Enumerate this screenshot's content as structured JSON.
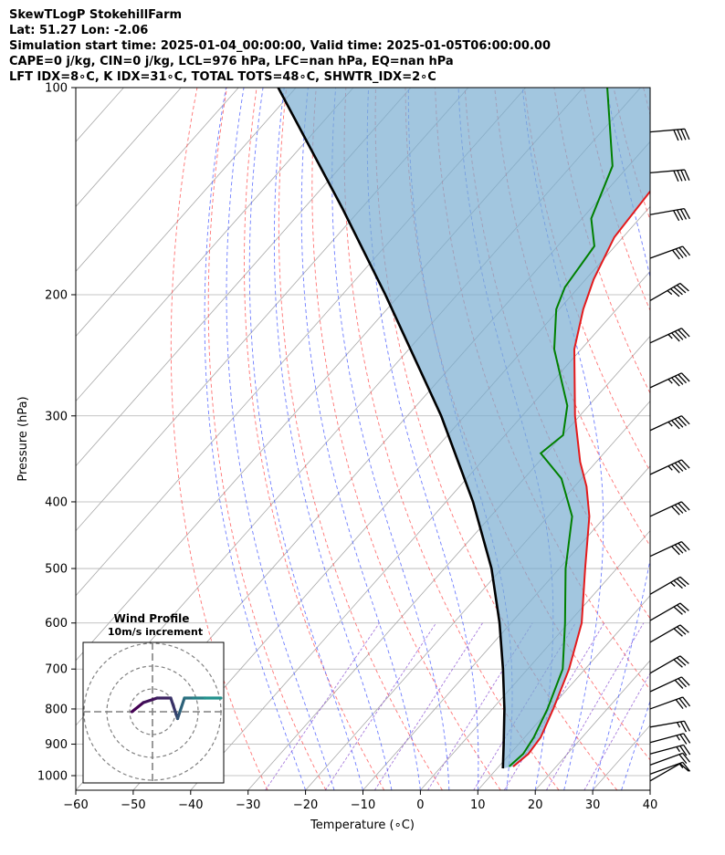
{
  "header": {
    "line1": "SkewTLogP StokehillFarm",
    "line2": "Lat: 51.27   Lon: -2.06",
    "line3": "Simulation start time: 2025-01-04_00:00:00, Valid time: 2025-01-05T06:00:00.00",
    "line4": "CAPE=0 j/kg, CIN=0 j/kg, LCL=976 hPa, LFC=nan hPa, EQ=nan hPa",
    "line5": "LFT IDX=8∘C, K IDX=31∘C, TOTAL TOTS=48∘C, SHWTR_IDX=2∘C"
  },
  "chart_data": {
    "type": "skew-t log-p",
    "xlabel": "Temperature (∘C)",
    "ylabel": "Pressure (hPa)",
    "xlim": [
      -60,
      40
    ],
    "ylim": [
      1050,
      100
    ],
    "x_ticks": [
      "−60",
      "−50",
      "−40",
      "−30",
      "−20",
      "−10",
      "0",
      "10",
      "20",
      "30",
      "40"
    ],
    "y_ticks": [
      "100",
      "200",
      "300",
      "400",
      "500",
      "600",
      "700",
      "800",
      "900",
      "1000"
    ],
    "y_scale": "log",
    "grid": true,
    "colors": {
      "temperature": "#e41a1c",
      "dewpoint": "#008000",
      "parcel": "#000000",
      "cape_shading": "#7aaed1",
      "dry_adiabats": "#ff5050",
      "moist_adiabats": "#4a5cff",
      "mixing_ratio": "#8a4fd0",
      "isotherms": "#a8a8a8"
    },
    "temperature_profile": [
      {
        "p": 970,
        "t": 12.5
      },
      {
        "p": 930,
        "t": 13.2
      },
      {
        "p": 880,
        "t": 12.8
      },
      {
        "p": 800,
        "t": 10.6
      },
      {
        "p": 700,
        "t": 7.2
      },
      {
        "p": 600,
        "t": 2.3
      },
      {
        "p": 500,
        "t": -5.5
      },
      {
        "p": 420,
        "t": -12.8
      },
      {
        "p": 380,
        "t": -17.9
      },
      {
        "p": 350,
        "t": -22.8
      },
      {
        "p": 300,
        "t": -30.8
      },
      {
        "p": 240,
        "t": -41.2
      },
      {
        "p": 210,
        "t": -45.8
      },
      {
        "p": 190,
        "t": -48.6
      },
      {
        "p": 165,
        "t": -51.5
      },
      {
        "p": 140,
        "t": -52.4
      },
      {
        "p": 120,
        "t": -54.6
      },
      {
        "p": 100,
        "t": -59.5
      }
    ],
    "dewpoint_profile": [
      {
        "p": 970,
        "t": 11.8
      },
      {
        "p": 930,
        "t": 12.3
      },
      {
        "p": 880,
        "t": 11.6
      },
      {
        "p": 800,
        "t": 9.6
      },
      {
        "p": 700,
        "t": 6.1
      },
      {
        "p": 600,
        "t": -0.6
      },
      {
        "p": 500,
        "t": -8.9
      },
      {
        "p": 420,
        "t": -15.8
      },
      {
        "p": 370,
        "t": -23.5
      },
      {
        "p": 340,
        "t": -31.0
      },
      {
        "p": 320,
        "t": -29.9
      },
      {
        "p": 290,
        "t": -33.7
      },
      {
        "p": 240,
        "t": -44.7
      },
      {
        "p": 210,
        "t": -50.5
      },
      {
        "p": 195,
        "t": -52.4
      },
      {
        "p": 170,
        "t": -53.6
      },
      {
        "p": 155,
        "t": -58.4
      },
      {
        "p": 130,
        "t": -62.8
      },
      {
        "p": 100,
        "t": -75.8
      }
    ],
    "parcel_profile": [
      {
        "p": 976,
        "t": 11.0
      },
      {
        "p": 900,
        "t": 7.4
      },
      {
        "p": 800,
        "t": 2.1
      },
      {
        "p": 700,
        "t": -4.3
      },
      {
        "p": 600,
        "t": -12.0
      },
      {
        "p": 500,
        "t": -21.8
      },
      {
        "p": 400,
        "t": -35.3
      },
      {
        "p": 300,
        "t": -54.1
      },
      {
        "p": 200,
        "t": -82.5
      },
      {
        "p": 150,
        "t": -103.2
      },
      {
        "p": 100,
        "t": -133.1
      }
    ],
    "wind_barbs": [
      {
        "p": 1018,
        "speed_kt": 10,
        "direction": 240
      },
      {
        "p": 995,
        "speed_kt": 15,
        "direction": 250
      },
      {
        "p": 965,
        "speed_kt": 20,
        "direction": 250
      },
      {
        "p": 930,
        "speed_kt": 25,
        "direction": 255
      },
      {
        "p": 895,
        "speed_kt": 25,
        "direction": 255
      },
      {
        "p": 850,
        "speed_kt": 25,
        "direction": 260
      },
      {
        "p": 800,
        "speed_kt": 30,
        "direction": 250
      },
      {
        "p": 755,
        "speed_kt": 30,
        "direction": 245
      },
      {
        "p": 710,
        "speed_kt": 30,
        "direction": 240
      },
      {
        "p": 640,
        "speed_kt": 30,
        "direction": 240
      },
      {
        "p": 595,
        "speed_kt": 30,
        "direction": 240
      },
      {
        "p": 545,
        "speed_kt": 35,
        "direction": 240
      },
      {
        "p": 480,
        "speed_kt": 40,
        "direction": 245
      },
      {
        "p": 420,
        "speed_kt": 40,
        "direction": 245
      },
      {
        "p": 365,
        "speed_kt": 45,
        "direction": 245
      },
      {
        "p": 315,
        "speed_kt": 45,
        "direction": 245
      },
      {
        "p": 273,
        "speed_kt": 45,
        "direction": 245
      },
      {
        "p": 235,
        "speed_kt": 45,
        "direction": 245
      },
      {
        "p": 204,
        "speed_kt": 45,
        "direction": 240
      },
      {
        "p": 177,
        "speed_kt": 40,
        "direction": 250
      },
      {
        "p": 153,
        "speed_kt": 40,
        "direction": 260
      },
      {
        "p": 133,
        "speed_kt": 40,
        "direction": 265
      },
      {
        "p": 116,
        "speed_kt": 40,
        "direction": 265
      }
    ],
    "hodograph": {
      "title_line1": "Wind Profile",
      "title_line2": "10m/s increment",
      "ring_step_ms": 10,
      "points_ms": [
        [
          -9,
          0
        ],
        [
          -4,
          4
        ],
        [
          2,
          6
        ],
        [
          8,
          6
        ],
        [
          10,
          0
        ],
        [
          11,
          -3
        ],
        [
          12,
          0
        ],
        [
          14,
          6
        ],
        [
          18,
          6
        ],
        [
          23,
          6
        ],
        [
          30,
          6
        ]
      ],
      "color_start": "#440154",
      "color_end": "#21918c"
    }
  }
}
